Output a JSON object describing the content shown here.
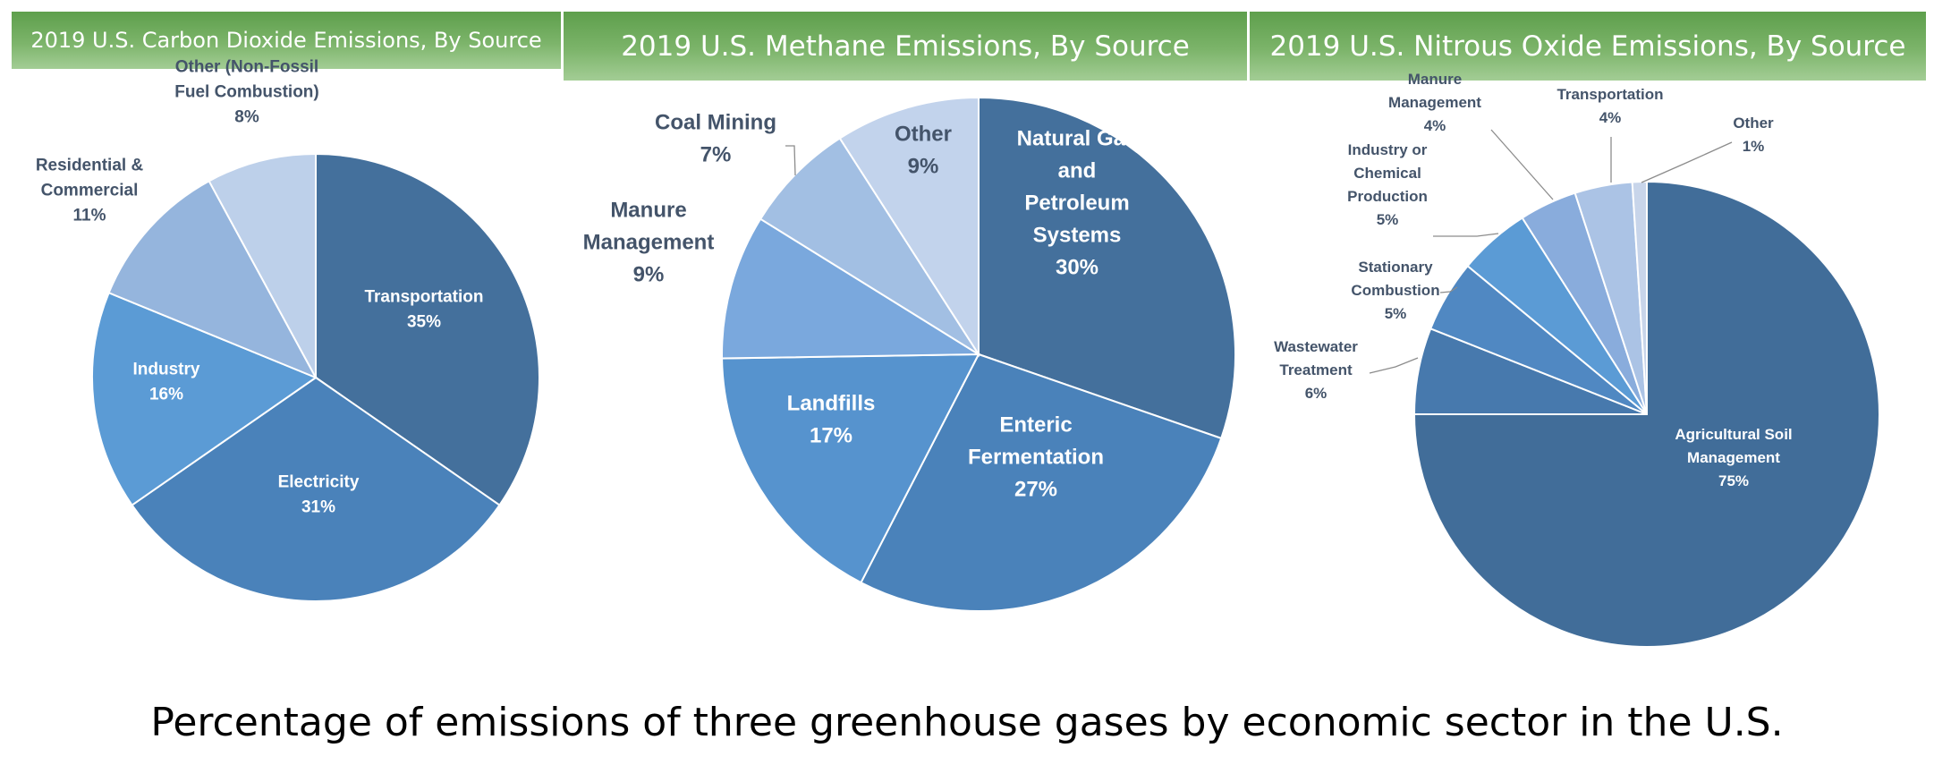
{
  "chart_data": [
    {
      "type": "pie",
      "title": "2019 U.S. Carbon Dioxide Emissions, By Source",
      "categories": [
        "Transportation",
        "Electricity",
        "Industry",
        "Residential & Commercial",
        "Other (Non-Fossil Fuel Combustion)"
      ],
      "values": [
        35,
        31,
        16,
        11,
        8
      ],
      "labels": [
        [
          "Transportation",
          "35%"
        ],
        [
          "Electricity",
          "31%"
        ],
        [
          "Industry",
          "16%"
        ],
        [
          "Residential &",
          "Commercial",
          "11%"
        ],
        [
          "Other (Non-Fossil",
          "Fuel Combustion)",
          "8%"
        ]
      ],
      "colors": [
        "#44709c",
        "#4a82ba",
        "#5b9bd5",
        "#95b5dd",
        "#bdd0ea"
      ]
    },
    {
      "type": "pie",
      "title": "2019 U.S. Methane Emissions, By Source",
      "categories": [
        "Natural Gas and Petroleum Systems",
        "Enteric Fermentation",
        "Landfills",
        "Manure Management",
        "Coal Mining",
        "Other"
      ],
      "values": [
        30,
        27,
        17,
        9,
        7,
        9
      ],
      "labels": [
        [
          "Natural Gas",
          "and",
          "Petroleum",
          "Systems",
          "30%"
        ],
        [
          "Enteric",
          "Fermentation",
          "27%"
        ],
        [
          "Landfills",
          "17%"
        ],
        [
          "Manure",
          "Management",
          "9%"
        ],
        [
          "Coal Mining",
          "7%"
        ],
        [
          "Other",
          "9%"
        ]
      ],
      "colors": [
        "#44709c",
        "#4a82ba",
        "#5693ce",
        "#7aa8dd",
        "#a2bfe3",
        "#c2d3ec"
      ]
    },
    {
      "type": "pie",
      "title": "2019 U.S. Nitrous Oxide Emissions, By Source",
      "categories": [
        "Agricultural Soil Management",
        "Wastewater Treatment",
        "Stationary Combustion",
        "Industry or Chemical Production",
        "Manure Management",
        "Transportation",
        "Other"
      ],
      "values": [
        75,
        6,
        5,
        5,
        4,
        4,
        1
      ],
      "labels": [
        [
          "Agricultural Soil",
          "Management",
          "75%"
        ],
        [
          "Wastewater",
          "Treatment",
          "6%"
        ],
        [
          "Stationary",
          "Combustion",
          "5%"
        ],
        [
          "Industry or",
          "Chemical",
          "Production",
          "5%"
        ],
        [
          "Manure",
          "Management",
          "4%"
        ],
        [
          "Transportation",
          "4%"
        ],
        [
          "Other",
          "1%"
        ]
      ],
      "colors": [
        "#416d99",
        "#4779ad",
        "#5088c2",
        "#5b9bd5",
        "#89acdc",
        "#abc3e5",
        "#c8d5ea"
      ]
    }
  ],
  "caption": "Percentage of emissions of three greenhouse gases by economic sector in the U.S."
}
